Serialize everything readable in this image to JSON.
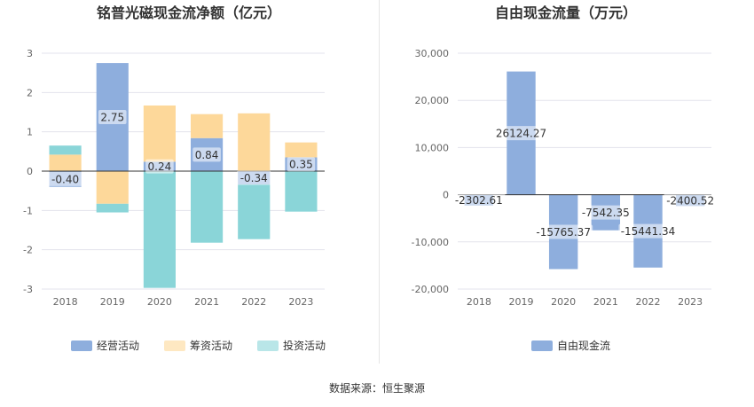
{
  "source": "数据来源：恒生聚源",
  "chart_data": [
    {
      "type": "bar",
      "stacked": true,
      "title": "铭普光磁现金流净额（亿元）",
      "categories": [
        "2018",
        "2019",
        "2020",
        "2021",
        "2022",
        "2023"
      ],
      "ylim": [
        -3,
        3
      ],
      "yticks": [
        "-3",
        "-2",
        "-1",
        "0",
        "1",
        "2",
        "3"
      ],
      "grid": true,
      "legend_position": "bottom",
      "series": [
        {
          "name": "经营活动",
          "color": "#8eaedd",
          "values": [
            -0.4,
            2.75,
            0.24,
            0.84,
            -0.34,
            0.35
          ]
        },
        {
          "name": "筹资活动",
          "color": "#fdd89a",
          "values": [
            0.42,
            -0.83,
            1.43,
            0.61,
            1.47,
            0.38
          ]
        },
        {
          "name": "投资活动",
          "color": "#8ad5d8",
          "values": [
            0.23,
            -0.22,
            -2.97,
            -1.82,
            -1.39,
            -1.03
          ]
        }
      ],
      "data_labels": [
        "-0.40",
        "2.75",
        "0.24",
        "0.84",
        "-0.34",
        "0.35"
      ]
    },
    {
      "type": "bar",
      "title": "自由现金流量（万元）",
      "categories": [
        "2018",
        "2019",
        "2020",
        "2021",
        "2022",
        "2023"
      ],
      "ylim": [
        -20000,
        30000
      ],
      "yticks": [
        "-20,000",
        "-10,000",
        "0",
        "10,000",
        "20,000",
        "30,000"
      ],
      "grid": true,
      "legend_position": "bottom",
      "series": [
        {
          "name": "自由现金流",
          "color": "#8eaedd",
          "values": [
            -2302.61,
            26124.27,
            -15765.37,
            -7542.35,
            -15441.34,
            -2400.52
          ]
        }
      ],
      "data_labels": [
        "-2302.61",
        "26124.27",
        "-15765.37",
        "-7542.35",
        "-15441.34",
        "-2400.52"
      ]
    }
  ]
}
